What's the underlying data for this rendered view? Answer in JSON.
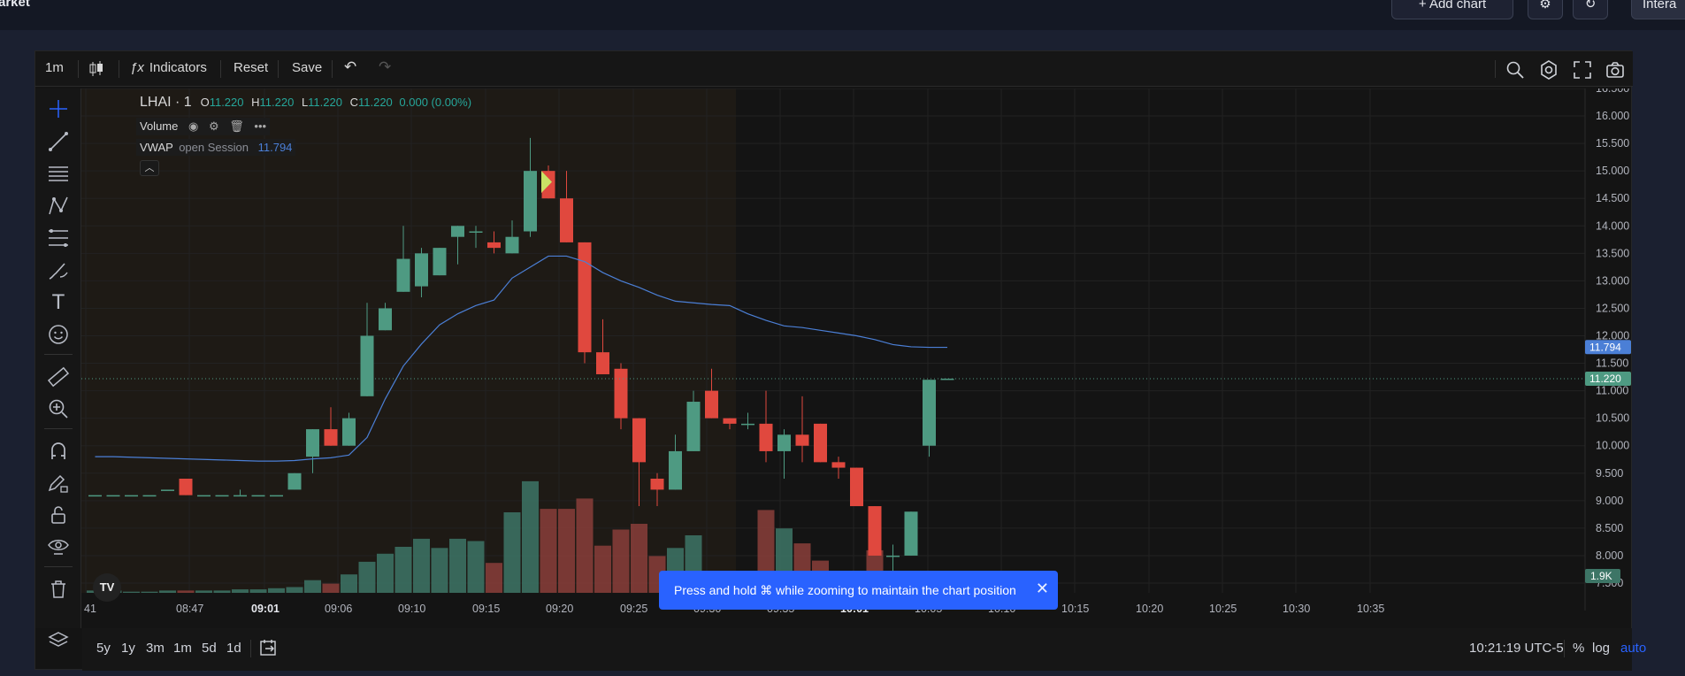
{
  "topbar": {
    "market_label": "arket",
    "add_chart_label": "+ Add chart",
    "right_label": "Intera"
  },
  "toolbar": {
    "interval": "1m",
    "indicators_label": "Indicators",
    "reset_label": "Reset",
    "save_label": "Save"
  },
  "legend": {
    "symbol": "LHAI · 1",
    "o_label": "O",
    "o_value": "11.220",
    "h_label": "H",
    "h_value": "11.220",
    "l_label": "L",
    "l_value": "11.220",
    "c_label": "C",
    "c_value": "11.220",
    "change": "0.000 (0.00%)",
    "volume_label": "Volume",
    "vwap_label": "VWAP",
    "vwap_params": "open Session",
    "vwap_value": "11.794"
  },
  "chart_data": {
    "type": "candlestick",
    "price_axis": [
      "16.500",
      "16.000",
      "15.500",
      "15.000",
      "14.500",
      "14.000",
      "13.500",
      "13.000",
      "12.500",
      "12.000",
      "11.500",
      "11.000",
      "10.500",
      "10.000",
      "9.500",
      "9.000",
      "8.500",
      "8.000",
      "7.500"
    ],
    "ylim": [
      7.3,
      16.6
    ],
    "time_axis": [
      "41",
      "08:47",
      "09:01",
      "09:06",
      "09:10",
      "09:15",
      "09:20",
      "09:25",
      "09:30",
      "09:35",
      "10:01",
      "10:05",
      "10:10",
      "10:15",
      "10:20",
      "10:25",
      "10:30",
      "10:35"
    ],
    "last_price_label": "11.220",
    "vwap_price_label": "11.794",
    "volume_label": "1.9K",
    "candles": [
      {
        "o": 9.1,
        "h": 9.1,
        "l": 9.1,
        "c": 9.1
      },
      {
        "o": 9.1,
        "h": 9.1,
        "l": 9.1,
        "c": 9.1
      },
      {
        "o": 9.1,
        "h": 9.1,
        "l": 9.1,
        "c": 9.1
      },
      {
        "o": 9.1,
        "h": 9.1,
        "l": 9.1,
        "c": 9.1
      },
      {
        "o": 9.2,
        "h": 9.2,
        "l": 9.2,
        "c": 9.2
      },
      {
        "o": 9.4,
        "h": 9.4,
        "l": 9.1,
        "c": 9.1
      },
      {
        "o": 9.1,
        "h": 9.1,
        "l": 9.1,
        "c": 9.1
      },
      {
        "o": 9.1,
        "h": 9.1,
        "l": 9.1,
        "c": 9.1
      },
      {
        "o": 9.1,
        "h": 9.2,
        "l": 9.1,
        "c": 9.1
      },
      {
        "o": 9.1,
        "h": 9.1,
        "l": 9.1,
        "c": 9.1
      },
      {
        "o": 9.1,
        "h": 9.1,
        "l": 9.1,
        "c": 9.1
      },
      {
        "o": 9.2,
        "h": 9.5,
        "l": 9.2,
        "c": 9.5
      },
      {
        "o": 9.8,
        "h": 10.3,
        "l": 9.5,
        "c": 10.3
      },
      {
        "o": 10.3,
        "h": 10.7,
        "l": 10.0,
        "c": 10.0
      },
      {
        "o": 10.0,
        "h": 10.6,
        "l": 10.0,
        "c": 10.5
      },
      {
        "o": 10.9,
        "h": 12.6,
        "l": 10.9,
        "c": 12.0
      },
      {
        "o": 12.1,
        "h": 12.6,
        "l": 12.1,
        "c": 12.5
      },
      {
        "o": 12.8,
        "h": 14.0,
        "l": 12.8,
        "c": 13.4
      },
      {
        "o": 12.9,
        "h": 13.6,
        "l": 12.7,
        "c": 13.5
      },
      {
        "o": 13.1,
        "h": 13.6,
        "l": 13.1,
        "c": 13.6
      },
      {
        "o": 13.8,
        "h": 14.0,
        "l": 13.3,
        "c": 14.0
      },
      {
        "o": 13.9,
        "h": 14.0,
        "l": 13.6,
        "c": 13.9
      },
      {
        "o": 13.7,
        "h": 13.9,
        "l": 13.5,
        "c": 13.6
      },
      {
        "o": 13.5,
        "h": 14.1,
        "l": 13.5,
        "c": 13.8
      },
      {
        "o": 13.9,
        "h": 15.6,
        "l": 13.8,
        "c": 15.0
      },
      {
        "o": 15.0,
        "h": 15.1,
        "l": 14.5,
        "c": 14.5
      },
      {
        "o": 14.5,
        "h": 15.0,
        "l": 13.7,
        "c": 13.7
      },
      {
        "o": 13.7,
        "h": 13.7,
        "l": 11.5,
        "c": 11.7
      },
      {
        "o": 11.7,
        "h": 12.3,
        "l": 11.3,
        "c": 11.3
      },
      {
        "o": 11.4,
        "h": 11.5,
        "l": 10.3,
        "c": 10.5
      },
      {
        "o": 10.5,
        "h": 10.5,
        "l": 8.9,
        "c": 9.7
      },
      {
        "o": 9.4,
        "h": 9.5,
        "l": 8.9,
        "c": 9.2
      },
      {
        "o": 9.2,
        "h": 10.2,
        "l": 9.2,
        "c": 9.9
      },
      {
        "o": 9.9,
        "h": 11.0,
        "l": 9.9,
        "c": 10.8
      },
      {
        "o": 11.0,
        "h": 11.4,
        "l": 10.5,
        "c": 10.5
      },
      {
        "o": 10.5,
        "h": 10.5,
        "l": 10.3,
        "c": 10.4
      },
      {
        "o": 10.4,
        "h": 10.6,
        "l": 10.3,
        "c": 10.4
      },
      {
        "o": 10.4,
        "h": 11.0,
        "l": 9.7,
        "c": 9.9
      },
      {
        "o": 9.9,
        "h": 10.3,
        "l": 9.4,
        "c": 10.2
      },
      {
        "o": 10.2,
        "h": 10.9,
        "l": 9.7,
        "c": 10.0
      },
      {
        "o": 10.4,
        "h": 10.4,
        "l": 9.7,
        "c": 9.7
      },
      {
        "o": 9.7,
        "h": 9.8,
        "l": 9.4,
        "c": 9.6
      },
      {
        "o": 9.6,
        "h": 9.6,
        "l": 8.9,
        "c": 8.9
      },
      {
        "o": 8.9,
        "h": 8.9,
        "l": 8.0,
        "c": 8.0
      },
      {
        "o": 8.0,
        "h": 8.2,
        "l": 7.6,
        "c": 8.0
      },
      {
        "o": 8.0,
        "h": 8.8,
        "l": 8.0,
        "c": 8.8
      },
      {
        "o": 10.0,
        "h": 11.2,
        "l": 9.8,
        "c": 11.2
      },
      {
        "o": 11.22,
        "h": 11.22,
        "l": 11.22,
        "c": 11.22
      }
    ],
    "volumes": [
      0.2,
      0.2,
      0.1,
      0.1,
      0.2,
      0.2,
      0.2,
      0.2,
      0.3,
      0.3,
      0.4,
      0.5,
      1.1,
      0.8,
      1.6,
      2.7,
      3.4,
      4.0,
      4.7,
      3.9,
      4.7,
      4.5,
      2.6,
      7.0,
      9.7,
      7.3,
      7.3,
      8.2,
      4.1,
      5.5,
      6.0,
      3.2,
      3.9,
      5.0,
      1.4,
      1.3,
      0.9,
      7.2,
      5.6,
      4.3,
      2.8,
      1.4,
      1.0,
      3.7,
      1.8,
      0.9,
      0.7,
      0.3
    ],
    "vwap": [
      9.8,
      9.8,
      9.79,
      9.78,
      9.77,
      9.76,
      9.75,
      9.74,
      9.73,
      9.72,
      9.72,
      9.73,
      9.76,
      9.78,
      9.83,
      10.15,
      10.85,
      11.45,
      11.85,
      12.2,
      12.4,
      12.55,
      12.65,
      13.05,
      13.25,
      13.45,
      13.45,
      13.35,
      13.15,
      13.0,
      12.88,
      12.74,
      12.63,
      12.6,
      12.57,
      12.55,
      12.4,
      12.28,
      12.18,
      12.15,
      12.1,
      12.05,
      12.0,
      11.93,
      11.84,
      11.8,
      11.79,
      11.79
    ]
  },
  "toast": {
    "message": "Press and hold ⌘ while zooming to maintain the chart position"
  },
  "bottombar": {
    "ranges": [
      "5y",
      "1y",
      "3m",
      "1m",
      "5d",
      "1d"
    ],
    "clock": "10:21:19 UTC-5",
    "percent_label": "%",
    "log_label": "log",
    "auto_label": "auto"
  },
  "colors": {
    "up": "#4e9a82",
    "down": "#e0483e",
    "vwap": "#4b7fd6",
    "accent": "#2962ff"
  }
}
